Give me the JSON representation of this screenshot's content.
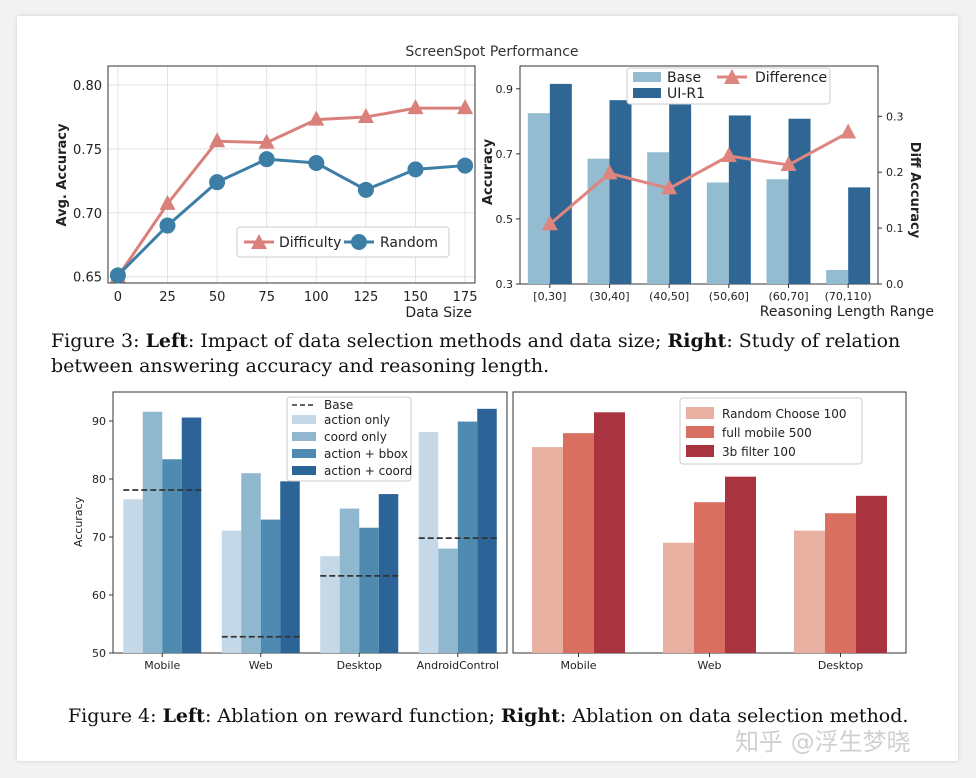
{
  "figure3": {
    "caption_label": "Figure 3:",
    "caption_left_bold": "Left",
    "caption_left_text": ": Impact of data selection methods and data size;",
    "caption_right_bold": "Right",
    "caption_right_text": ": Study of relation",
    "caption_line2": "between answering accuracy and reasoning length."
  },
  "figure4": {
    "caption_label": "Figure 4:",
    "caption_left_bold": "Left",
    "caption_left_text": ": Ablation on reward function;",
    "caption_right_bold": "Right",
    "caption_right_text": ": Ablation on data selection method."
  },
  "watermark": "知乎 @浮生梦晓",
  "colors": {
    "difficulty": "#d9807a",
    "random": "#3d7ea6",
    "base_bar": "#93bcd0",
    "uir1_bar": "#2f6694",
    "difference": "#de8580",
    "ab_action": "#c4d8e8",
    "ab_coord": "#8fb8cf",
    "ab_bbox": "#4f8bb1",
    "ab_both": "#2d6497",
    "sel_random": "#e8b0a0",
    "sel_full": "#d96f60",
    "sel_3b": "#a9333f"
  },
  "chart_data": [
    {
      "id": "f3left",
      "type": "line",
      "title": "ScreenSpot Performance",
      "xlabel": "Data Size",
      "ylabel": "Avg. Accuracy",
      "x": [
        0,
        25,
        50,
        75,
        100,
        125,
        150,
        175
      ],
      "xticks": [
        "0",
        "25",
        "50",
        "75",
        "100",
        "125",
        "150",
        "175"
      ],
      "yticks": [
        "0.65",
        "0.70",
        "0.75",
        "0.80"
      ],
      "xlim": [
        -5,
        180
      ],
      "ylim": [
        0.645,
        0.815
      ],
      "grid": true,
      "legend_position": "lower-right",
      "series": [
        {
          "name": "Difficulty",
          "marker": "triangle",
          "values": [
            0.65,
            0.707,
            0.756,
            0.755,
            0.773,
            0.775,
            0.782,
            0.782
          ]
        },
        {
          "name": "Random",
          "marker": "circle",
          "values": [
            0.651,
            0.69,
            0.724,
            0.742,
            0.739,
            0.718,
            0.734,
            0.737
          ]
        }
      ]
    },
    {
      "id": "f3right",
      "type": "bar",
      "xlabel": "Reasoning Length Range",
      "ylabel": "Accuracy",
      "ylabel_right": "Diff Accuracy",
      "categories": [
        "[0,30]",
        "(30,40]",
        "(40,50]",
        "(50,60]",
        "(60,70]",
        "(70,110)"
      ],
      "yticks": [
        "0.3",
        "0.5",
        "0.7",
        "0.9"
      ],
      "ylim": [
        0.3,
        0.97
      ],
      "yticks_right": [
        "0.0",
        "0.1",
        "0.2",
        "0.3"
      ],
      "ylim_right": [
        0.0,
        0.39
      ],
      "legend_position": "top",
      "series": [
        {
          "name": "Base",
          "values": [
            0.825,
            0.685,
            0.705,
            0.612,
            0.622,
            0.343
          ]
        },
        {
          "name": "UI-R1",
          "values": [
            0.915,
            0.865,
            0.855,
            0.818,
            0.808,
            0.597
          ]
        },
        {
          "name": "Difference",
          "axis": "right",
          "marker": "triangle",
          "values": [
            0.107,
            0.198,
            0.171,
            0.229,
            0.213,
            0.271
          ]
        }
      ]
    },
    {
      "id": "f4left",
      "type": "bar",
      "ylabel": "Accuracy",
      "categories": [
        "Mobile",
        "Web",
        "Desktop",
        "AndroidControl"
      ],
      "yticks": [
        "50",
        "60",
        "70",
        "80",
        "90"
      ],
      "ylim": [
        50,
        95
      ],
      "legend_position": "top-right",
      "series": [
        {
          "name": "action only",
          "values": [
            76.5,
            71.1,
            66.7,
            88.1
          ]
        },
        {
          "name": "coord only",
          "values": [
            91.6,
            81.0,
            74.9,
            68.0
          ]
        },
        {
          "name": "action + bbox",
          "values": [
            83.4,
            73.0,
            71.6,
            89.9
          ]
        },
        {
          "name": "action + coord",
          "values": [
            90.6,
            79.6,
            77.4,
            92.1
          ]
        }
      ],
      "base": {
        "name": "Base",
        "values": [
          78.1,
          52.8,
          63.3,
          69.8
        ]
      }
    },
    {
      "id": "f4right",
      "type": "bar",
      "categories": [
        "Mobile",
        "Web",
        "Desktop"
      ],
      "ylim": [
        50,
        95
      ],
      "legend_position": "top-right",
      "series": [
        {
          "name": "Random Choose 100",
          "values": [
            85.5,
            69.0,
            71.1
          ]
        },
        {
          "name": "full mobile 500",
          "values": [
            87.9,
            76.0,
            74.1
          ]
        },
        {
          "name": "3b filter 100",
          "values": [
            91.5,
            80.4,
            77.1
          ]
        }
      ]
    }
  ]
}
